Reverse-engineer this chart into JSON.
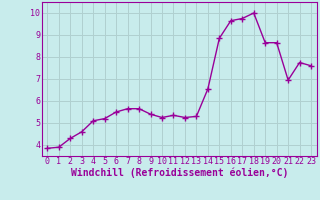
{
  "x": [
    0,
    1,
    2,
    3,
    4,
    5,
    6,
    7,
    8,
    9,
    10,
    11,
    12,
    13,
    14,
    15,
    16,
    17,
    18,
    19,
    20,
    21,
    22,
    23
  ],
  "y": [
    3.85,
    3.9,
    4.3,
    4.6,
    5.1,
    5.2,
    5.5,
    5.65,
    5.65,
    5.4,
    5.25,
    5.35,
    5.25,
    5.3,
    6.55,
    8.85,
    9.65,
    9.75,
    10.0,
    8.65,
    8.65,
    6.95,
    7.75,
    7.6
  ],
  "line_color": "#990099",
  "marker": "+",
  "marker_size": 4,
  "linewidth": 1.0,
  "bg_color": "#c8ecec",
  "grid_color": "#b0d0d0",
  "xlabel": "Windchill (Refroidissement éolien,°C)",
  "xlabel_color": "#990099",
  "xlabel_fontsize": 7.0,
  "tick_color": "#990099",
  "tick_fontsize": 6.0,
  "ylabel_ticks": [
    4,
    5,
    6,
    7,
    8,
    9,
    10
  ],
  "xlim": [
    -0.5,
    23.5
  ],
  "ylim": [
    3.5,
    10.5
  ],
  "xticks": [
    0,
    1,
    2,
    3,
    4,
    5,
    6,
    7,
    8,
    9,
    10,
    11,
    12,
    13,
    14,
    15,
    16,
    17,
    18,
    19,
    20,
    21,
    22,
    23
  ]
}
